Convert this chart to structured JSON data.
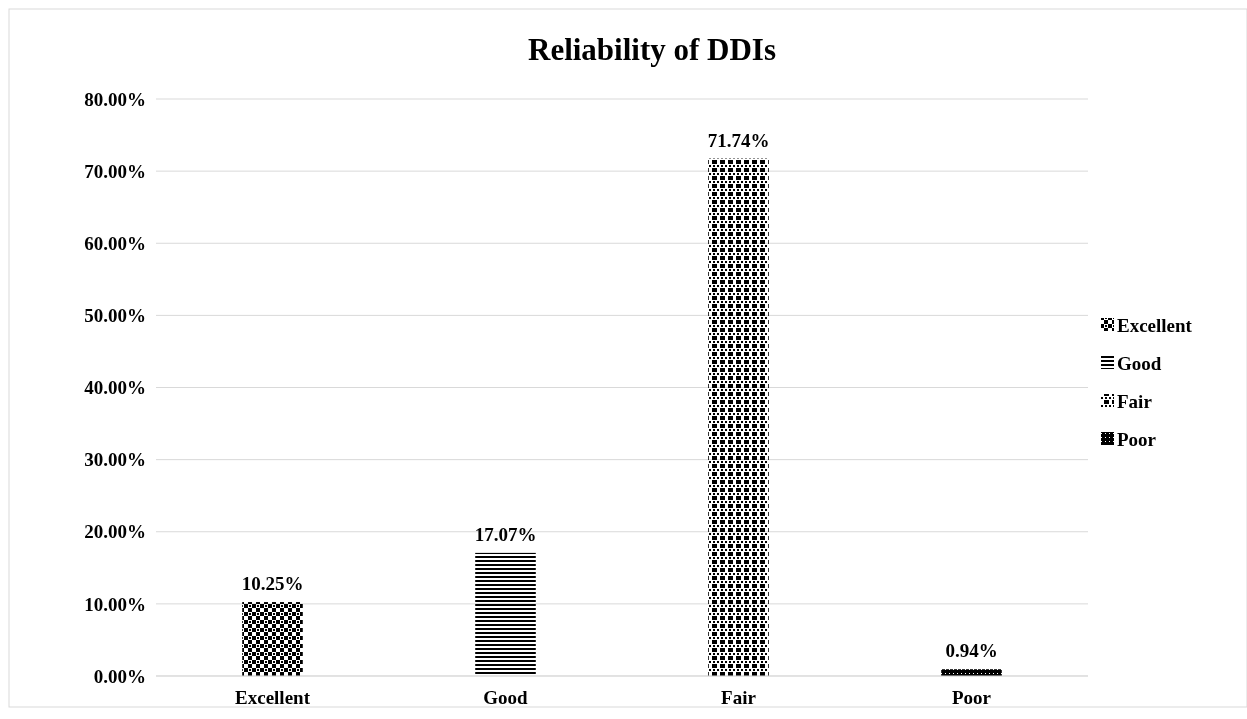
{
  "chart_data": {
    "type": "bar",
    "title": "Reliability of DDIs",
    "categories": [
      "Excellent",
      "Good",
      "Fair",
      "Poor"
    ],
    "series": [
      {
        "name": "Excellent",
        "color": "#000000",
        "values": [
          10.25,
          null,
          null,
          null
        ],
        "value_labels": [
          "10.25%",
          null,
          null,
          null
        ]
      },
      {
        "name": "Good",
        "color": "#000000",
        "values": [
          null,
          17.07,
          null,
          null
        ],
        "value_labels": [
          null,
          "17.07%",
          null,
          null
        ]
      },
      {
        "name": "Fair",
        "color": "#000000",
        "values": [
          null,
          null,
          71.74,
          null
        ],
        "value_labels": [
          null,
          null,
          "71.74%",
          null
        ]
      },
      {
        "name": "Poor",
        "color": "#000000",
        "values": [
          null,
          null,
          null,
          0.94
        ],
        "value_labels": [
          null,
          null,
          null,
          "0.94%"
        ]
      }
    ],
    "ylim": [
      0,
      80
    ],
    "yticks": [
      {
        "value": 0,
        "label": "0.00%"
      },
      {
        "value": 10,
        "label": "10.00%"
      },
      {
        "value": 20,
        "label": "20.00%"
      },
      {
        "value": 30,
        "label": "30.00%"
      },
      {
        "value": 40,
        "label": "40.00%"
      },
      {
        "value": 50,
        "label": "50.00%"
      },
      {
        "value": 60,
        "label": "60.00%"
      },
      {
        "value": 70,
        "label": "70.00%"
      },
      {
        "value": 80,
        "label": "80.00%"
      }
    ],
    "grid": "y",
    "legend": "right"
  }
}
